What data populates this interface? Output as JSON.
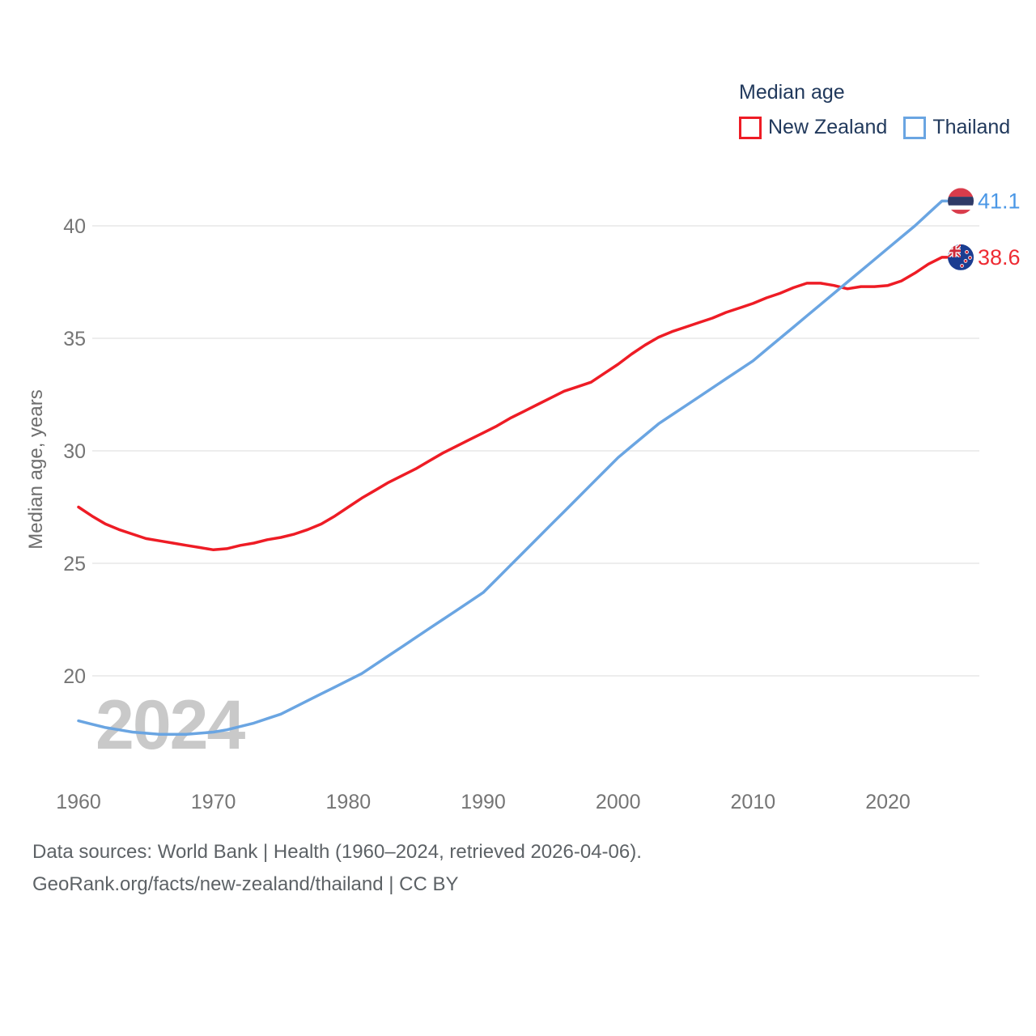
{
  "legend": {
    "title": "Median age",
    "items": [
      {
        "label": "New Zealand",
        "color": "#ee1c25"
      },
      {
        "label": "Thailand",
        "color": "#6aa5e2"
      }
    ]
  },
  "watermark": "2024",
  "footer": {
    "line1": "Data sources: World Bank | Health (1960–2024, retrieved 2026-04-06).",
    "line2": "GeoRank.org/facts/new-zealand/thailand | CC BY"
  },
  "colors": {
    "new_zealand_line": "#ee1c25",
    "thailand_line": "#6aa5e2",
    "new_zealand_value_label": "#ee2b33",
    "thailand_value_label": "#4a97e6",
    "tick_text": "#757575",
    "axis_title_text": "#6e6e6e",
    "gridline": "#e7e7e7",
    "watermark_text": "#c9c9c9",
    "legend_text": "#21395c",
    "footer_text": "#5d6266",
    "thai_flag_red": "#d93c4b",
    "thai_flag_navy": "#2f3a66",
    "nz_flag_blue": "#1b3d91",
    "nz_flag_red": "#cf2b3a"
  },
  "chart_data": {
    "type": "line",
    "title": "Median age",
    "xlabel": "",
    "ylabel": "Median age, years",
    "x_ticks": [
      1960,
      1970,
      1980,
      1990,
      2000,
      2010,
      2020
    ],
    "y_ticks": [
      20,
      25,
      30,
      35,
      40
    ],
    "xlim": [
      1960,
      2024
    ],
    "ylim": [
      16.8,
      42
    ],
    "grid": "horizontal-only",
    "legend_position": "top-right",
    "watermark": "2024",
    "x": [
      1960,
      1961,
      1962,
      1963,
      1964,
      1965,
      1966,
      1967,
      1968,
      1969,
      1970,
      1971,
      1972,
      1973,
      1974,
      1975,
      1976,
      1977,
      1978,
      1979,
      1980,
      1981,
      1982,
      1983,
      1984,
      1985,
      1986,
      1987,
      1988,
      1989,
      1990,
      1991,
      1992,
      1993,
      1994,
      1995,
      1996,
      1997,
      1998,
      1999,
      2000,
      2001,
      2002,
      2003,
      2004,
      2005,
      2006,
      2007,
      2008,
      2009,
      2010,
      2011,
      2012,
      2013,
      2014,
      2015,
      2016,
      2017,
      2018,
      2019,
      2020,
      2021,
      2022,
      2023,
      2024
    ],
    "series": [
      {
        "name": "New Zealand",
        "color": "#ee1c25",
        "end_label": "38.6",
        "flag": "new-zealand",
        "values": [
          27.5,
          27.1,
          26.75,
          26.5,
          26.3,
          26.1,
          26.0,
          25.9,
          25.8,
          25.7,
          25.6,
          25.65,
          25.8,
          25.9,
          26.05,
          26.15,
          26.3,
          26.5,
          26.75,
          27.1,
          27.5,
          27.9,
          28.25,
          28.6,
          28.9,
          29.2,
          29.55,
          29.9,
          30.2,
          30.5,
          30.8,
          31.1,
          31.45,
          31.75,
          32.05,
          32.35,
          32.65,
          32.85,
          33.05,
          33.45,
          33.85,
          34.3,
          34.7,
          35.05,
          35.3,
          35.5,
          35.7,
          35.9,
          36.15,
          36.35,
          36.55,
          36.8,
          37.0,
          37.25,
          37.45,
          37.45,
          37.35,
          37.2,
          37.3,
          37.3,
          37.35,
          37.55,
          37.9,
          38.3,
          38.6
        ]
      },
      {
        "name": "Thailand",
        "color": "#6aa5e2",
        "end_label": "41.1",
        "flag": "thailand",
        "values": [
          18.0,
          17.85,
          17.7,
          17.6,
          17.5,
          17.45,
          17.4,
          17.4,
          17.4,
          17.45,
          17.5,
          17.6,
          17.75,
          17.9,
          18.1,
          18.3,
          18.6,
          18.9,
          19.2,
          19.5,
          19.8,
          20.1,
          20.5,
          20.9,
          21.3,
          21.7,
          22.1,
          22.5,
          22.9,
          23.3,
          23.7,
          24.3,
          24.9,
          25.5,
          26.1,
          26.7,
          27.3,
          27.9,
          28.5,
          29.1,
          29.7,
          30.2,
          30.7,
          31.2,
          31.6,
          32.0,
          32.4,
          32.8,
          33.2,
          33.6,
          34.0,
          34.5,
          35.0,
          35.5,
          36.0,
          36.5,
          37.0,
          37.5,
          38.0,
          38.5,
          39.0,
          39.5,
          40.0,
          40.55,
          41.1
        ]
      }
    ]
  }
}
